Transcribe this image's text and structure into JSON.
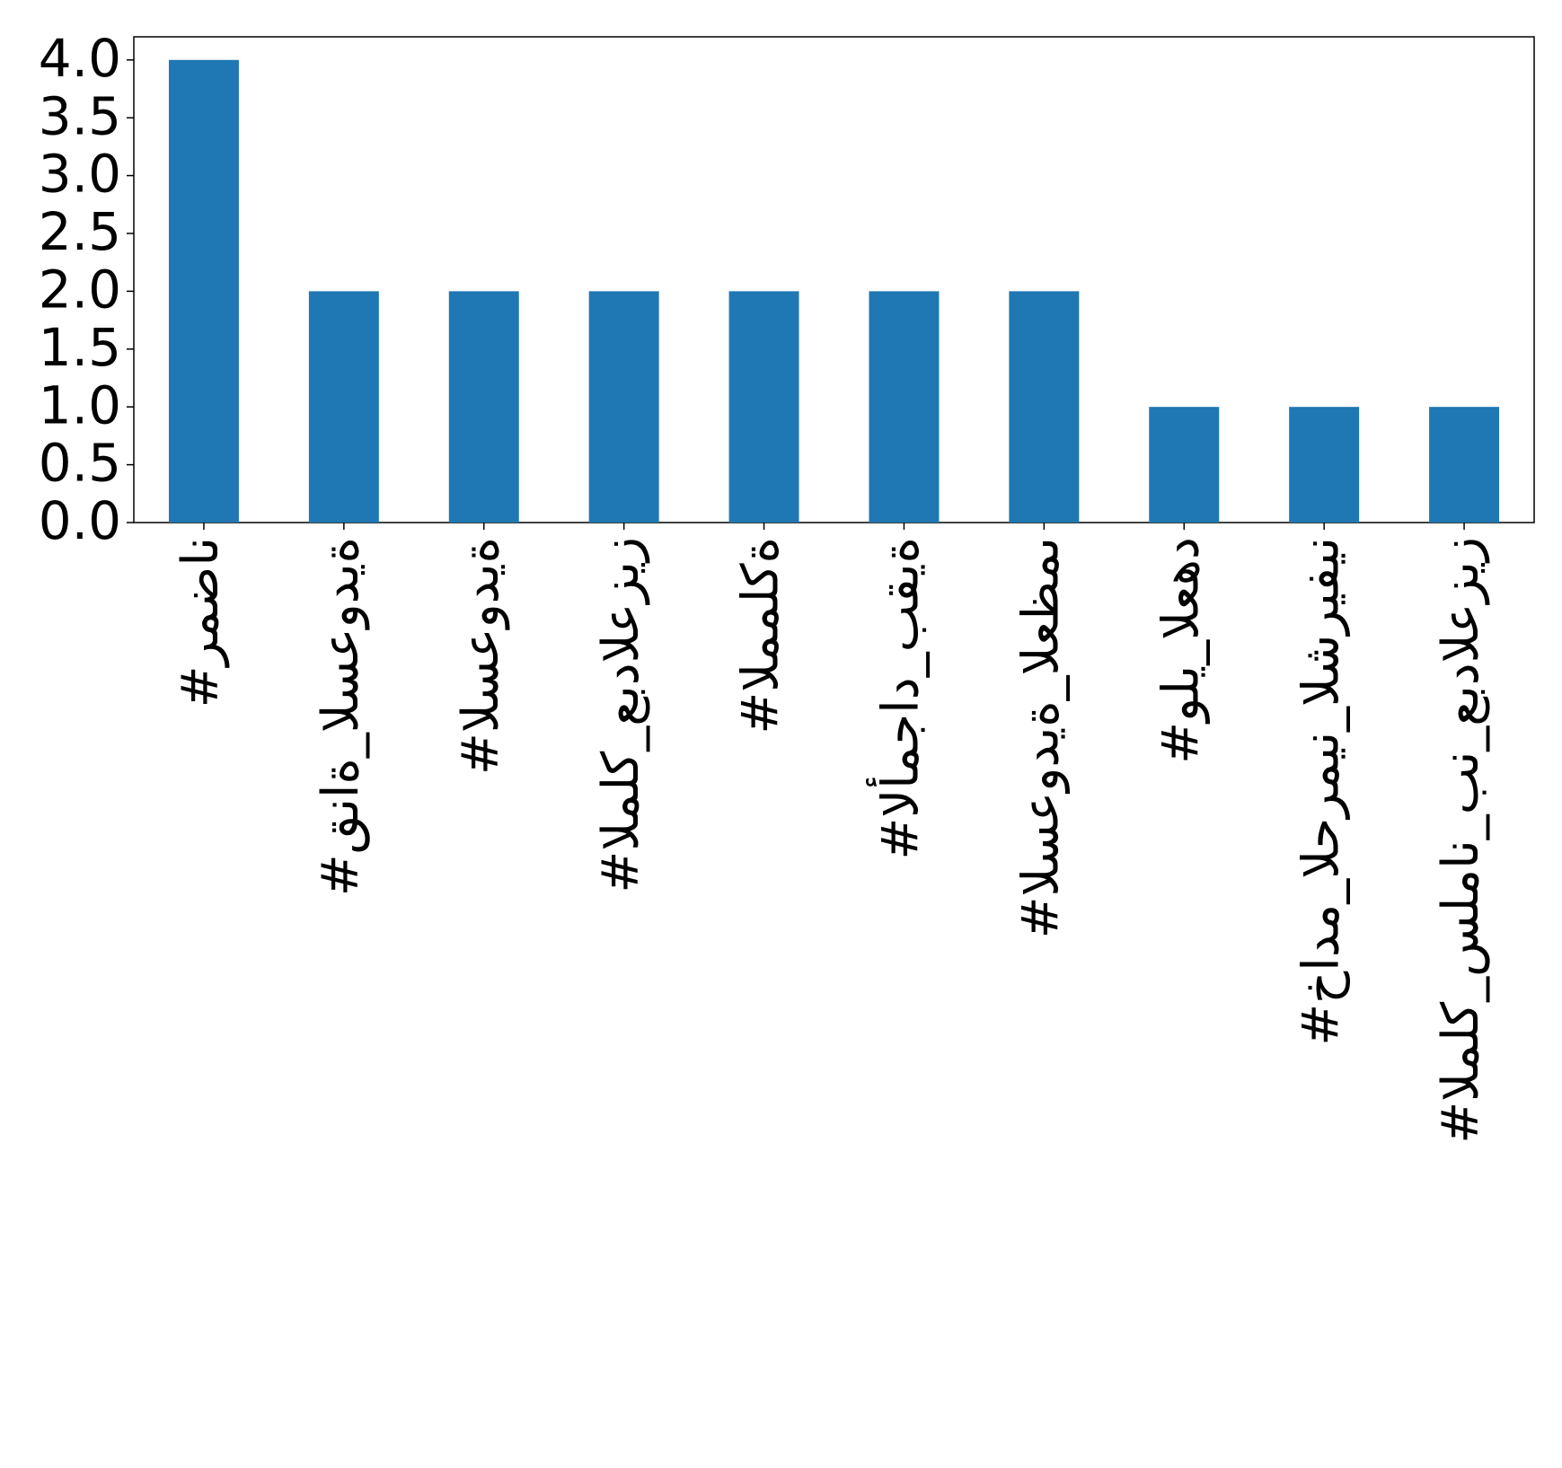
{
  "chart_data": {
    "type": "bar",
    "categories": [
      "#رمضان",
      "#قناة_السعودية",
      "#السعودية",
      "#الملك_عبدالعزيز",
      "#المملكة",
      "#الأمجاد_بقية",
      "#السعودية_العظمى",
      "#ولي_العهد",
      "#خادم_الحرمين_الشريفين",
      "#الملك_سلمان_بن_عبدالعزيز"
    ],
    "values": [
      4,
      2,
      2,
      2,
      2,
      2,
      2,
      1,
      1,
      1
    ],
    "color": "#1f77b4",
    "ylim": [
      0,
      4.2
    ],
    "yticks": [
      {
        "value": 0,
        "label": "0.0"
      },
      {
        "value": 0.5,
        "label": "0.5"
      },
      {
        "value": 1,
        "label": "1.0"
      },
      {
        "value": 1.5,
        "label": "1.5"
      },
      {
        "value": 2,
        "label": "2.0"
      },
      {
        "value": 2.5,
        "label": "2.5"
      },
      {
        "value": 3,
        "label": "3.0"
      },
      {
        "value": 3.5,
        "label": "3.5"
      },
      {
        "value": 4,
        "label": "4.0"
      }
    ],
    "grid": false
  }
}
